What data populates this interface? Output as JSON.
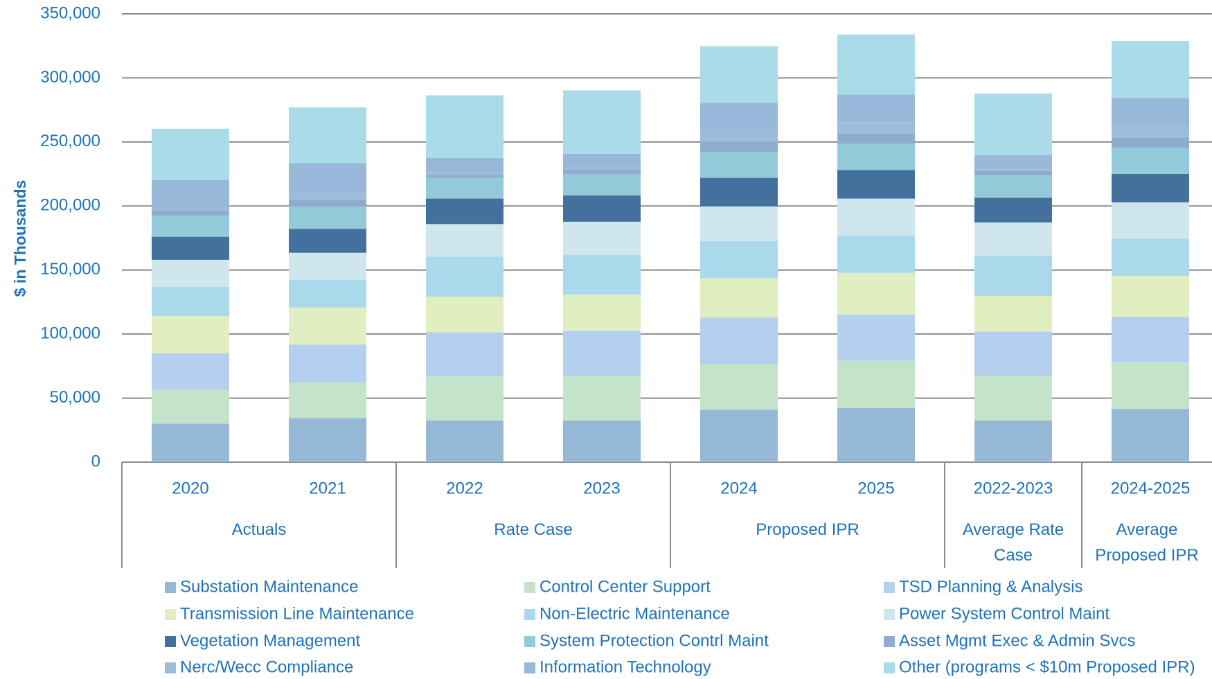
{
  "chart_data": {
    "type": "stacked_bar",
    "y_label": "$ in Thousands",
    "categories": [
      "2020",
      "2021",
      "2022",
      "2023",
      "2024",
      "2025",
      "2022-2023",
      "2024-2025"
    ],
    "x_groups": [
      {
        "label": "Actuals",
        "size": 2
      },
      {
        "label": "Rate Case",
        "size": 2
      },
      {
        "label": "Proposed IPR",
        "size": 2
      },
      {
        "label": "Average Rate Case",
        "size": 1
      },
      {
        "label": "Average Proposed IPR",
        "size": 1
      }
    ],
    "ylim": [
      0,
      350000
    ],
    "yticks": [
      {
        "value": 0,
        "label": "0"
      },
      {
        "value": 50000,
        "label": "50,000"
      },
      {
        "value": 100000,
        "label": "100,000"
      },
      {
        "value": 150000,
        "label": "150,000"
      },
      {
        "value": 200000,
        "label": "200,000"
      },
      {
        "value": 250000,
        "label": "250,000"
      },
      {
        "value": 300000,
        "label": "300,000"
      },
      {
        "value": 350000,
        "label": "350,000"
      }
    ],
    "grid": true,
    "legend": "bottom",
    "series": [
      {
        "name": "Substation Maintenance",
        "color": "#95b8d6",
        "values": [
          30000,
          34400,
          32600,
          32600,
          41000,
          42200,
          32600,
          41600
        ]
      },
      {
        "name": "Control Center Support",
        "color": "#c4e3c9",
        "values": [
          26500,
          27800,
          34400,
          35000,
          35600,
          36900,
          35000,
          36200
        ]
      },
      {
        "name": "TSD Planning & Analysis",
        "color": "#b5cfee",
        "values": [
          28500,
          29500,
          34400,
          35000,
          36200,
          36200,
          34400,
          35600
        ]
      },
      {
        "name": "Transmission Line Maintenance",
        "color": "#e1eebf",
        "values": [
          29000,
          29000,
          27700,
          28300,
          30800,
          32500,
          27700,
          32000
        ]
      },
      {
        "name": "Non-Electric Maintenance",
        "color": "#a9d9ea",
        "values": [
          23000,
          21700,
          31400,
          30800,
          29000,
          29000,
          31400,
          29000
        ]
      },
      {
        "name": "Power System Control Maint",
        "color": "#cfe6ec",
        "values": [
          21000,
          21100,
          25400,
          26000,
          27100,
          29000,
          26000,
          28400
        ]
      },
      {
        "name": "Vegetation Management",
        "color": "#44709d",
        "values": [
          18000,
          18700,
          19900,
          20500,
          22300,
          22300,
          19300,
          22300
        ]
      },
      {
        "name": "System Protection Contrl Maint",
        "color": "#93cad9",
        "values": [
          16500,
          17500,
          16300,
          16900,
          20000,
          20500,
          17500,
          20500
        ]
      },
      {
        "name": "Asset Mgmt Exec & Admin Svcs",
        "color": "#8fabcd",
        "values": [
          4000,
          5000,
          2000,
          3600,
          8000,
          8000,
          3600,
          8000
        ]
      },
      {
        "name": "Nerc/Wecc Compliance",
        "color": "#9dbcdb",
        "values": [
          3000,
          5900,
          2500,
          2000,
          8900,
          8900,
          2000,
          8900
        ]
      },
      {
        "name": "Information Technology",
        "color": "#98b8d9",
        "values": [
          20800,
          22900,
          11000,
          10100,
          21700,
          21600,
          10100,
          21700
        ]
      },
      {
        "name": "Other (programs < $10m Proposed IPR)",
        "color": "#a9dbe8",
        "values": [
          40000,
          43500,
          48800,
          49500,
          44100,
          46700,
          48200,
          44700
        ]
      }
    ]
  }
}
